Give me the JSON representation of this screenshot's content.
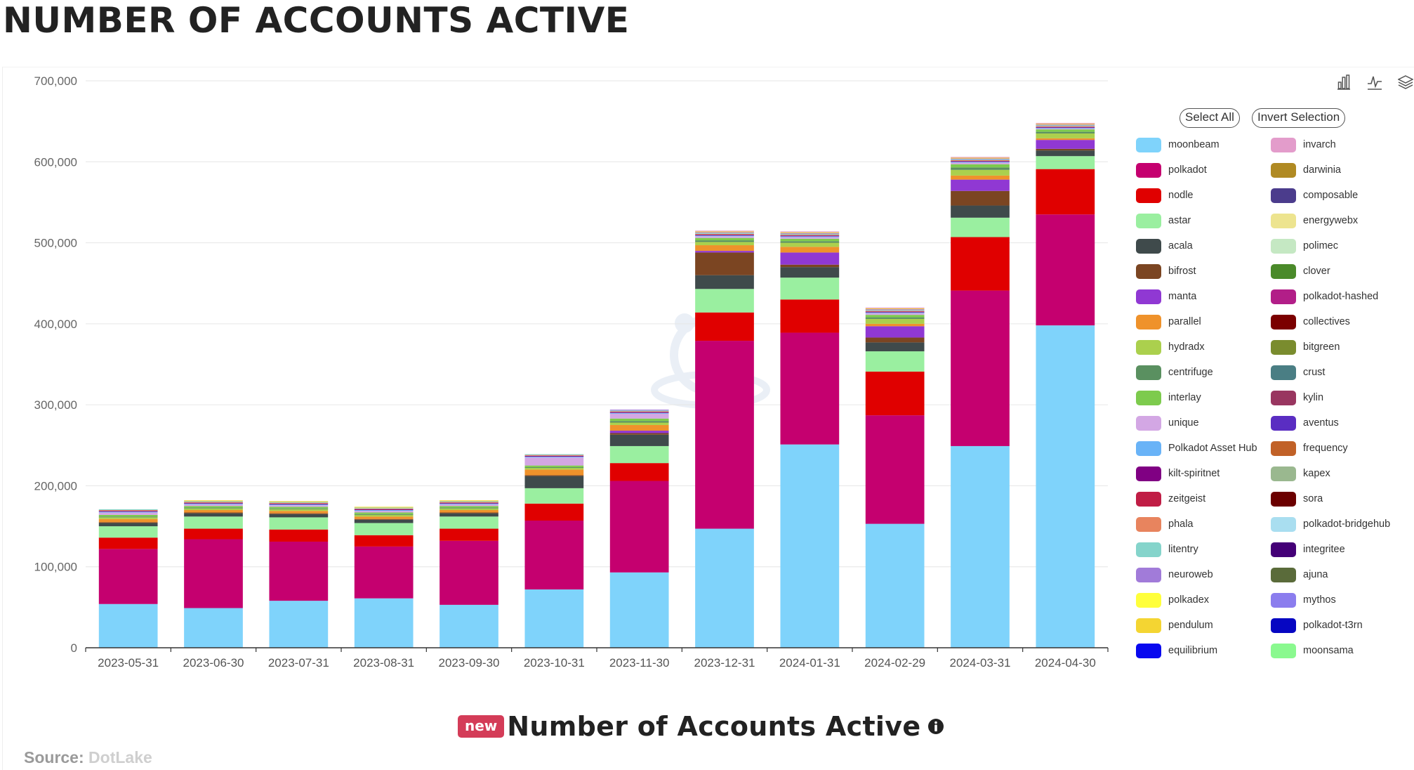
{
  "page": {
    "title": "NUMBER OF ACCOUNTS ACTIVE",
    "bottom_title": "Number of Accounts Active",
    "badge": "new",
    "source_label": "Source:",
    "source_value": "DotLake"
  },
  "toolbox": {
    "icons": [
      "bar-chart-icon",
      "line-chart-icon",
      "stack-layers-icon"
    ]
  },
  "legend": {
    "select_all": "Select All",
    "invert_selection": "Invert Selection",
    "items": [
      {
        "name": "moonbeam",
        "color": "#7fd3fb"
      },
      {
        "name": "polkadot",
        "color": "#c5006f"
      },
      {
        "name": "nodle",
        "color": "#e00000"
      },
      {
        "name": "astar",
        "color": "#9aefa0"
      },
      {
        "name": "acala",
        "color": "#3f4a4b"
      },
      {
        "name": "bifrost",
        "color": "#7b4522"
      },
      {
        "name": "manta",
        "color": "#9038d3"
      },
      {
        "name": "parallel",
        "color": "#ef922b"
      },
      {
        "name": "hydradx",
        "color": "#abd04d"
      },
      {
        "name": "centrifuge",
        "color": "#5a9060"
      },
      {
        "name": "interlay",
        "color": "#7dcb4d"
      },
      {
        "name": "unique",
        "color": "#d3a7e4"
      },
      {
        "name": "Polkadot Asset Hub",
        "color": "#69b3f7"
      },
      {
        "name": "kilt-spiritnet",
        "color": "#800083"
      },
      {
        "name": "zeitgeist",
        "color": "#c01d45"
      },
      {
        "name": "phala",
        "color": "#e8845e"
      },
      {
        "name": "litentry",
        "color": "#85d4cb"
      },
      {
        "name": "neuroweb",
        "color": "#a17bd9"
      },
      {
        "name": "polkadex",
        "color": "#ffff3b"
      },
      {
        "name": "pendulum",
        "color": "#f4d532"
      },
      {
        "name": "equilibrium",
        "color": "#0909ef"
      },
      {
        "name": "invarch",
        "color": "#e39ccb"
      },
      {
        "name": "darwinia",
        "color": "#b08a23"
      },
      {
        "name": "composable",
        "color": "#4b3c8c"
      },
      {
        "name": "energywebx",
        "color": "#ede48f"
      },
      {
        "name": "polimec",
        "color": "#c5e8c3"
      },
      {
        "name": "clover",
        "color": "#4a8a2a"
      },
      {
        "name": "polkadot-hashed",
        "color": "#b21e88"
      },
      {
        "name": "collectives",
        "color": "#7b0000"
      },
      {
        "name": "bitgreen",
        "color": "#7a8c2e"
      },
      {
        "name": "crust",
        "color": "#4a7e84"
      },
      {
        "name": "kylin",
        "color": "#993660"
      },
      {
        "name": "aventus",
        "color": "#5a2dc2"
      },
      {
        "name": "frequency",
        "color": "#c16127"
      },
      {
        "name": "kapex",
        "color": "#9ab88f"
      },
      {
        "name": "sora",
        "color": "#6b0000"
      },
      {
        "name": "polkadot-bridgehub",
        "color": "#a9def0"
      },
      {
        "name": "integritee",
        "color": "#440077"
      },
      {
        "name": "ajuna",
        "color": "#5a6b3a"
      },
      {
        "name": "mythos",
        "color": "#8b7dee"
      },
      {
        "name": "polkadot-t3rn",
        "color": "#0606c2"
      },
      {
        "name": "moonsama",
        "color": "#8af98f"
      }
    ]
  },
  "chart_data": {
    "type": "bar",
    "stacked": true,
    "title": "",
    "xlabel": "",
    "ylabel": "",
    "ylim": [
      0,
      700000
    ],
    "yticks": [
      0,
      100000,
      200000,
      300000,
      400000,
      500000,
      600000,
      700000
    ],
    "ytick_labels": [
      "0",
      "100,000",
      "200,000",
      "300,000",
      "400,000",
      "500,000",
      "600,000",
      "700,000"
    ],
    "grid": true,
    "legend_position": "right",
    "categories": [
      "2023-05-31",
      "2023-06-30",
      "2023-07-31",
      "2023-08-31",
      "2023-09-30",
      "2023-10-31",
      "2023-11-30",
      "2023-12-31",
      "2024-01-31",
      "2024-02-29",
      "2024-03-31",
      "2024-04-30"
    ],
    "series": [
      {
        "name": "moonbeam",
        "color": "#7fd3fb",
        "values": [
          54000,
          49000,
          58000,
          61000,
          53000,
          72000,
          93000,
          147000,
          251000,
          153000,
          249000,
          398000
        ]
      },
      {
        "name": "polkadot",
        "color": "#c5006f",
        "values": [
          68000,
          85000,
          73000,
          64000,
          79000,
          85000,
          113000,
          232000,
          138000,
          134000,
          192000,
          137000
        ]
      },
      {
        "name": "nodle",
        "color": "#e00000",
        "values": [
          14000,
          13000,
          15000,
          14000,
          15000,
          21000,
          22000,
          35000,
          41000,
          54000,
          66000,
          56000
        ]
      },
      {
        "name": "astar",
        "color": "#9aefa0",
        "values": [
          14000,
          15000,
          15000,
          15000,
          15000,
          19000,
          21000,
          29000,
          27000,
          25000,
          24000,
          16000
        ]
      },
      {
        "name": "acala",
        "color": "#3f4a4b",
        "values": [
          4000,
          4000,
          4000,
          4000,
          4000,
          15000,
          14000,
          17000,
          13000,
          11000,
          15000,
          7000
        ]
      },
      {
        "name": "bifrost",
        "color": "#7b4522",
        "values": [
          1000,
          1000,
          1000,
          1000,
          1000,
          1000,
          2000,
          28000,
          3000,
          6000,
          18000,
          2000
        ]
      },
      {
        "name": "manta",
        "color": "#9038d3",
        "values": [
          0,
          0,
          0,
          0,
          0,
          0,
          3000,
          2000,
          15000,
          14000,
          14000,
          11000
        ]
      },
      {
        "name": "parallel",
        "color": "#ef922b",
        "values": [
          4000,
          3000,
          3000,
          3000,
          3000,
          7000,
          7000,
          7000,
          7000,
          3000,
          5000,
          2000
        ]
      },
      {
        "name": "hydradx",
        "color": "#abd04d",
        "values": [
          2000,
          2000,
          2000,
          2000,
          2000,
          2000,
          3000,
          4000,
          5000,
          6000,
          7000,
          6000
        ]
      },
      {
        "name": "centrifuge",
        "color": "#5a9060",
        "values": [
          1000,
          1000,
          1000,
          1000,
          1000,
          1000,
          2000,
          2000,
          2000,
          2000,
          3000,
          2000
        ]
      },
      {
        "name": "interlay",
        "color": "#7dcb4d",
        "values": [
          2000,
          2000,
          2000,
          2000,
          2000,
          2000,
          3000,
          3000,
          3000,
          3000,
          4000,
          3000
        ]
      },
      {
        "name": "unique",
        "color": "#d3a7e4",
        "values": [
          3000,
          2000,
          2000,
          2000,
          2000,
          10000,
          6000,
          2000,
          2000,
          2000,
          2000,
          1000
        ]
      },
      {
        "name": "Polkadot Asset Hub",
        "color": "#69b3f7",
        "values": [
          1000,
          1000,
          1000,
          1000,
          1000,
          1000,
          1000,
          1000,
          1000,
          1000,
          1000,
          1000
        ]
      },
      {
        "name": "kilt-spiritnet",
        "color": "#800083",
        "values": [
          1000,
          1000,
          1000,
          1000,
          1000,
          1000,
          1000,
          1000,
          1000,
          1000,
          1000,
          1000
        ]
      },
      {
        "name": "zeitgeist",
        "color": "#c01d45",
        "values": [
          0,
          0,
          0,
          0,
          0,
          0,
          0,
          0,
          0,
          0,
          0,
          0
        ]
      },
      {
        "name": "phala",
        "color": "#e8845e",
        "values": [
          1000,
          1000,
          1000,
          1000,
          1000,
          1000,
          1000,
          1000,
          1000,
          1000,
          1000,
          1000
        ]
      },
      {
        "name": "litentry",
        "color": "#85d4cb",
        "values": [
          1000,
          1000,
          1000,
          1000,
          1000,
          1000,
          1000,
          1000,
          1000,
          1000,
          1000,
          1000
        ]
      },
      {
        "name": "neuroweb",
        "color": "#a17bd9",
        "values": [
          0,
          0,
          0,
          0,
          0,
          0,
          1000,
          1000,
          1000,
          1000,
          1000,
          1000
        ]
      },
      {
        "name": "polkadex",
        "color": "#ffff3b",
        "values": [
          0,
          0,
          0,
          0,
          0,
          0,
          0,
          0,
          0,
          0,
          0,
          0
        ]
      },
      {
        "name": "pendulum",
        "color": "#f4d532",
        "values": [
          0,
          1000,
          1000,
          1000,
          1000,
          0,
          0,
          1000,
          1000,
          1000,
          1000,
          1000
        ]
      },
      {
        "name": "equilibrium",
        "color": "#0909ef",
        "values": [
          0,
          0,
          0,
          0,
          0,
          0,
          0,
          0,
          0,
          0,
          0,
          0
        ]
      },
      {
        "name": "invarch",
        "color": "#e39ccb",
        "values": [
          0,
          0,
          0,
          0,
          0,
          0,
          0,
          1000,
          1000,
          1000,
          1000,
          1000
        ]
      },
      {
        "name": "darwinia",
        "color": "#b08a23",
        "values": [
          0,
          0,
          0,
          0,
          0,
          0,
          0,
          0,
          0,
          0,
          0,
          0
        ]
      },
      {
        "name": "composable",
        "color": "#4b3c8c",
        "values": [
          0,
          0,
          0,
          0,
          0,
          0,
          0,
          0,
          0,
          0,
          0,
          0
        ]
      },
      {
        "name": "energywebx",
        "color": "#ede48f",
        "values": [
          0,
          0,
          0,
          0,
          0,
          0,
          0,
          0,
          0,
          0,
          0,
          0
        ]
      },
      {
        "name": "polimec",
        "color": "#c5e8c3",
        "values": [
          0,
          0,
          0,
          0,
          0,
          0,
          0,
          0,
          0,
          0,
          0,
          0
        ]
      },
      {
        "name": "clover",
        "color": "#4a8a2a",
        "values": [
          0,
          0,
          0,
          0,
          0,
          0,
          0,
          0,
          0,
          0,
          0,
          0
        ]
      },
      {
        "name": "polkadot-hashed",
        "color": "#b21e88",
        "values": [
          0,
          0,
          0,
          0,
          0,
          0,
          0,
          0,
          0,
          0,
          0,
          0
        ]
      },
      {
        "name": "collectives",
        "color": "#7b0000",
        "values": [
          0,
          0,
          0,
          0,
          0,
          0,
          0,
          0,
          0,
          0,
          0,
          0
        ]
      },
      {
        "name": "bitgreen",
        "color": "#7a8c2e",
        "values": [
          0,
          0,
          0,
          0,
          0,
          0,
          0,
          0,
          0,
          0,
          0,
          0
        ]
      },
      {
        "name": "crust",
        "color": "#4a7e84",
        "values": [
          0,
          0,
          0,
          0,
          0,
          0,
          0,
          0,
          0,
          0,
          0,
          0
        ]
      },
      {
        "name": "kylin",
        "color": "#993660",
        "values": [
          0,
          0,
          0,
          0,
          0,
          0,
          0,
          0,
          0,
          0,
          0,
          0
        ]
      },
      {
        "name": "aventus",
        "color": "#5a2dc2",
        "values": [
          0,
          0,
          0,
          0,
          0,
          0,
          0,
          0,
          0,
          0,
          0,
          0
        ]
      },
      {
        "name": "frequency",
        "color": "#c16127",
        "values": [
          0,
          0,
          0,
          0,
          0,
          0,
          0,
          0,
          0,
          0,
          0,
          0
        ]
      },
      {
        "name": "kapex",
        "color": "#9ab88f",
        "values": [
          0,
          0,
          0,
          0,
          0,
          0,
          0,
          0,
          0,
          0,
          0,
          0
        ]
      },
      {
        "name": "sora",
        "color": "#6b0000",
        "values": [
          0,
          0,
          0,
          0,
          0,
          0,
          0,
          0,
          0,
          0,
          0,
          0
        ]
      },
      {
        "name": "polkadot-bridgehub",
        "color": "#a9def0",
        "values": [
          0,
          0,
          0,
          0,
          0,
          0,
          0,
          0,
          0,
          0,
          0,
          0
        ]
      },
      {
        "name": "integritee",
        "color": "#440077",
        "values": [
          0,
          0,
          0,
          0,
          0,
          0,
          0,
          0,
          0,
          0,
          0,
          0
        ]
      },
      {
        "name": "ajuna",
        "color": "#5a6b3a",
        "values": [
          0,
          0,
          0,
          0,
          0,
          0,
          0,
          0,
          0,
          0,
          0,
          0
        ]
      },
      {
        "name": "mythos",
        "color": "#8b7dee",
        "values": [
          0,
          0,
          0,
          0,
          0,
          0,
          0,
          0,
          0,
          0,
          0,
          0
        ]
      },
      {
        "name": "polkadot-t3rn",
        "color": "#0606c2",
        "values": [
          0,
          0,
          0,
          0,
          0,
          0,
          0,
          0,
          0,
          0,
          0,
          0
        ]
      },
      {
        "name": "moonsama",
        "color": "#8af98f",
        "values": [
          0,
          0,
          0,
          0,
          0,
          0,
          0,
          0,
          0,
          0,
          0,
          0
        ]
      }
    ]
  }
}
